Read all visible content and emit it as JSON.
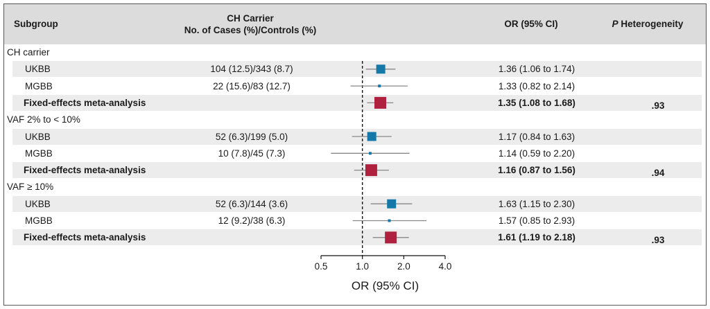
{
  "header": {
    "subgroup": "Subgroup",
    "carrier_line1": "CH Carrier",
    "carrier_line2": "No. of Cases (%)/Controls (%)",
    "or": "OR (95% CI)",
    "p_italic": "P",
    "p_rest": " Heterogeneity"
  },
  "colors": {
    "study": "#1478a8",
    "meta": "#b0213f",
    "ci": "#888888",
    "header_bg": "#dcdcdc",
    "row_shade": "#ececec"
  },
  "chart_data": {
    "type": "forest",
    "title": "",
    "xlabel": "OR (95% CI)",
    "x_scale": "log",
    "xlim": [
      0.5,
      4.0
    ],
    "xticks": [
      0.5,
      1.0,
      2.0,
      4.0
    ],
    "xtick_labels": [
      "0.5",
      "1.0",
      "2.0",
      "4.0"
    ],
    "reference_line": 1.0,
    "groups": [
      {
        "label": "CH carrier",
        "rows": [
          {
            "name": "UKBB",
            "counts": "104 (12.5)/343 (8.7)",
            "or": 1.36,
            "lo": 1.06,
            "hi": 1.74,
            "or_text": "1.36 (1.06 to 1.74)",
            "kind": "study",
            "p_het": ""
          },
          {
            "name": "MGBB",
            "counts": "22 (15.6)/83 (12.7)",
            "or": 1.33,
            "lo": 0.82,
            "hi": 2.14,
            "or_text": "1.33 (0.82 to 2.14)",
            "kind": "study",
            "p_het": ""
          },
          {
            "name": "Fixed-effects meta-analysis",
            "counts": "",
            "or": 1.35,
            "lo": 1.08,
            "hi": 1.68,
            "or_text": "1.35 (1.08 to 1.68)",
            "kind": "meta",
            "p_het": ".93"
          }
        ]
      },
      {
        "label": "VAF 2% to < 10%",
        "rows": [
          {
            "name": "UKBB",
            "counts": "52 (6.3)/199 (5.0)",
            "or": 1.17,
            "lo": 0.84,
            "hi": 1.63,
            "or_text": "1.17 (0.84 to 1.63)",
            "kind": "study",
            "p_het": ""
          },
          {
            "name": "MGBB",
            "counts": "10 (7.8)/45 (7.3)",
            "or": 1.14,
            "lo": 0.59,
            "hi": 2.2,
            "or_text": "1.14 (0.59 to 2.20)",
            "kind": "study",
            "p_het": ""
          },
          {
            "name": "Fixed-effects meta-analysis",
            "counts": "",
            "or": 1.16,
            "lo": 0.87,
            "hi": 1.56,
            "or_text": "1.16 (0.87 to 1.56)",
            "kind": "meta",
            "p_het": ".94"
          }
        ]
      },
      {
        "label": "VAF ≥ 10%",
        "rows": [
          {
            "name": "UKBB",
            "counts": "52 (6.3)/144 (3.6)",
            "or": 1.63,
            "lo": 1.15,
            "hi": 2.3,
            "or_text": "1.63 (1.15 to 2.30)",
            "kind": "study",
            "p_het": ""
          },
          {
            "name": "MGBB",
            "counts": "12 (9.2)/38 (6.3)",
            "or": 1.57,
            "lo": 0.85,
            "hi": 2.93,
            "or_text": "1.57 (0.85 to 2.93)",
            "kind": "study",
            "p_het": ""
          },
          {
            "name": "Fixed-effects meta-analysis",
            "counts": "",
            "or": 1.61,
            "lo": 1.19,
            "hi": 2.18,
            "or_text": "1.61 (1.19 to 2.18)",
            "kind": "meta",
            "p_het": ".93"
          }
        ]
      }
    ]
  }
}
